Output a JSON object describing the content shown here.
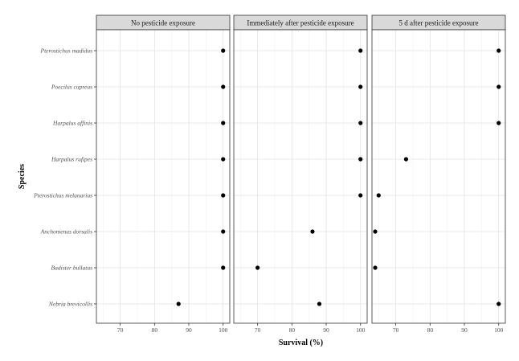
{
  "chart_data": {
    "type": "scatter",
    "title": "",
    "xlabel": "Survival (%)",
    "ylabel": "Species",
    "xlim": [
      64,
      101
    ],
    "xticks": [
      70,
      80,
      90,
      100
    ],
    "grid": true,
    "legend": "none",
    "point_color": "#000000",
    "categories": [
      "Pterostichus madidus",
      "Poecilus cupreus",
      "Harpalus affinis",
      "Harpalus rufipes",
      "Pterostichus melanarius",
      "Anchomenus dorsalis",
      "Badister bullatus",
      "Nebria brevicollis"
    ],
    "panels": [
      {
        "name": "No pesticide exposure",
        "values": [
          100,
          100,
          100,
          100,
          100,
          100,
          100,
          87
        ]
      },
      {
        "name": "Immediately after pesticide exposure",
        "values": [
          100,
          100,
          100,
          100,
          100,
          86,
          70,
          88
        ]
      },
      {
        "name": "5 d after pesticide exposure",
        "values": [
          100,
          100,
          100,
          73,
          65,
          64,
          64,
          100
        ]
      }
    ]
  }
}
